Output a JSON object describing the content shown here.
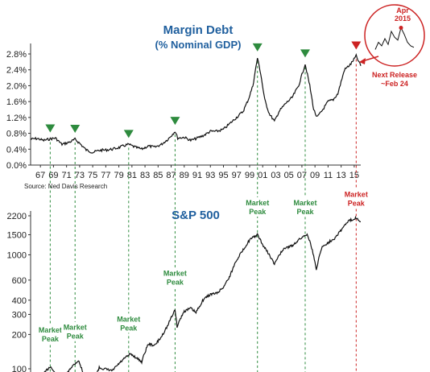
{
  "chart_data": [
    {
      "type": "line",
      "title": "Margin Debt",
      "subtitle": "(% Nominal GDP)",
      "source": "Source: Ned Davis Research",
      "yticks": [
        "0.0%",
        "0.4%",
        "0.8%",
        "1.2%",
        "1.6%",
        "2.0%",
        "2.4%",
        "2.8%"
      ],
      "ylim": [
        0,
        3.0
      ],
      "xlim": [
        1965.5,
        2016
      ],
      "xticks": [
        "67",
        "69",
        "71",
        "73",
        "75",
        "77",
        "79",
        "81",
        "83",
        "85",
        "87",
        "89",
        "91",
        "93",
        "95",
        "97",
        "99",
        "01",
        "03",
        "05",
        "07",
        "09",
        "11",
        "13",
        "15"
      ],
      "x": [
        1965.5,
        1966.5,
        1967.5,
        1968.5,
        1969.3,
        1970.3,
        1971.5,
        1972.3,
        1973.0,
        1974.0,
        1975.0,
        1976.0,
        1977.0,
        1978.0,
        1979.0,
        1980.0,
        1980.5,
        1981.5,
        1982.5,
        1983.5,
        1984.5,
        1985.5,
        1986.5,
        1987.6,
        1988.0,
        1989.0,
        1990.0,
        1991.0,
        1992.0,
        1993.0,
        1994.0,
        1995.0,
        1996.0,
        1997.0,
        1998.0,
        1998.8,
        1999.5,
        2000.2,
        2000.7,
        2001.3,
        2002.0,
        2002.8,
        2003.5,
        2004.5,
        2005.5,
        2006.5,
        2007.5,
        2008.2,
        2008.8,
        2009.3,
        2010.0,
        2011.0,
        2011.8,
        2012.5,
        2013.5,
        2014.5,
        2015.3,
        2015.7,
        2016.0
      ],
      "values": [
        0.65,
        0.67,
        0.62,
        0.66,
        0.68,
        0.52,
        0.58,
        0.65,
        0.55,
        0.38,
        0.32,
        0.37,
        0.38,
        0.4,
        0.44,
        0.5,
        0.52,
        0.45,
        0.4,
        0.48,
        0.45,
        0.52,
        0.65,
        0.85,
        0.68,
        0.7,
        0.62,
        0.68,
        0.75,
        0.85,
        0.85,
        0.9,
        1.05,
        1.2,
        1.35,
        1.65,
        2.0,
        2.7,
        2.3,
        1.65,
        1.3,
        1.1,
        1.35,
        1.55,
        1.7,
        2.0,
        2.55,
        2.0,
        1.4,
        1.2,
        1.35,
        1.6,
        1.65,
        1.8,
        2.4,
        2.55,
        2.75,
        2.6,
        2.5
      ],
      "peak_years": [
        1968.5,
        1972.3,
        1980.5,
        1987.6,
        2000.2,
        2007.5
      ],
      "latest_peak_year": 2015.3
    },
    {
      "type": "line",
      "title": "S&P 500",
      "scale": "log",
      "yticks": [
        "100",
        "200",
        "300",
        "400",
        "600",
        "1000",
        "1500",
        "2200"
      ],
      "ytick_values": [
        100,
        200,
        300,
        400,
        600,
        1000,
        1500,
        2200
      ],
      "ylim": [
        100,
        2300
      ],
      "x": [
        1965.5,
        1966.8,
        1968.5,
        1970.3,
        1971.5,
        1972.8,
        1974.0,
        1974.8,
        1976.0,
        1978.0,
        1980.0,
        1980.8,
        1982.5,
        1983.5,
        1984.5,
        1985.5,
        1986.5,
        1987.6,
        1987.9,
        1989.0,
        1990.0,
        1990.8,
        1992.0,
        1993.0,
        1994.0,
        1995.0,
        1996.0,
        1997.0,
        1998.0,
        1999.0,
        2000.2,
        2001.0,
        2002.0,
        2002.8,
        2003.5,
        2004.5,
        2005.5,
        2006.5,
        2007.8,
        2008.5,
        2009.2,
        2010.0,
        2011.0,
        2012.0,
        2013.0,
        2014.0,
        2015.3,
        2016.0
      ],
      "values": [
        92,
        80,
        105,
        72,
        100,
        118,
        76,
        68,
        102,
        96,
        125,
        135,
        115,
        165,
        160,
        190,
        240,
        330,
        235,
        320,
        340,
        310,
        410,
        450,
        460,
        520,
        650,
        900,
        1100,
        1350,
        1500,
        1220,
        1000,
        820,
        1000,
        1150,
        1200,
        1350,
        1530,
        1150,
        730,
        1150,
        1280,
        1400,
        1650,
        1950,
        2120,
        1950
      ],
      "peak_labels": [
        {
          "line1": "Market",
          "line2": "Peak",
          "year": 1968.5,
          "color": "green"
        },
        {
          "line1": "Market",
          "line2": "Peak",
          "year": 1972.3,
          "color": "green"
        },
        {
          "line1": "Market",
          "line2": "Peak",
          "year": 1980.5,
          "color": "green"
        },
        {
          "line1": "Market",
          "line2": "Peak",
          "year": 1987.6,
          "color": "green"
        },
        {
          "line1": "Market",
          "line2": "Peak",
          "year": 2000.2,
          "color": "green"
        },
        {
          "line1": "Market",
          "line2": "Peak",
          "year": 2007.5,
          "color": "green"
        },
        {
          "line1": "Market",
          "line2": "Peak",
          "year": 2015.3,
          "color": "red"
        }
      ]
    }
  ],
  "inset": {
    "label_line1": "Apr",
    "label_line2": "2015",
    "note_line1": "Next Release",
    "note_line2": "~Feb 24",
    "values": [
      2.45,
      2.55,
      2.5,
      2.6,
      2.52,
      2.7,
      2.62,
      2.58,
      2.75,
      2.66,
      2.55,
      2.5,
      2.48
    ],
    "peak_index": 8
  },
  "colors": {
    "title": "#1f5f9e",
    "green": "#2e8b3e",
    "red": "#cc2222",
    "line": "#111111",
    "grid": "#cccccc"
  }
}
